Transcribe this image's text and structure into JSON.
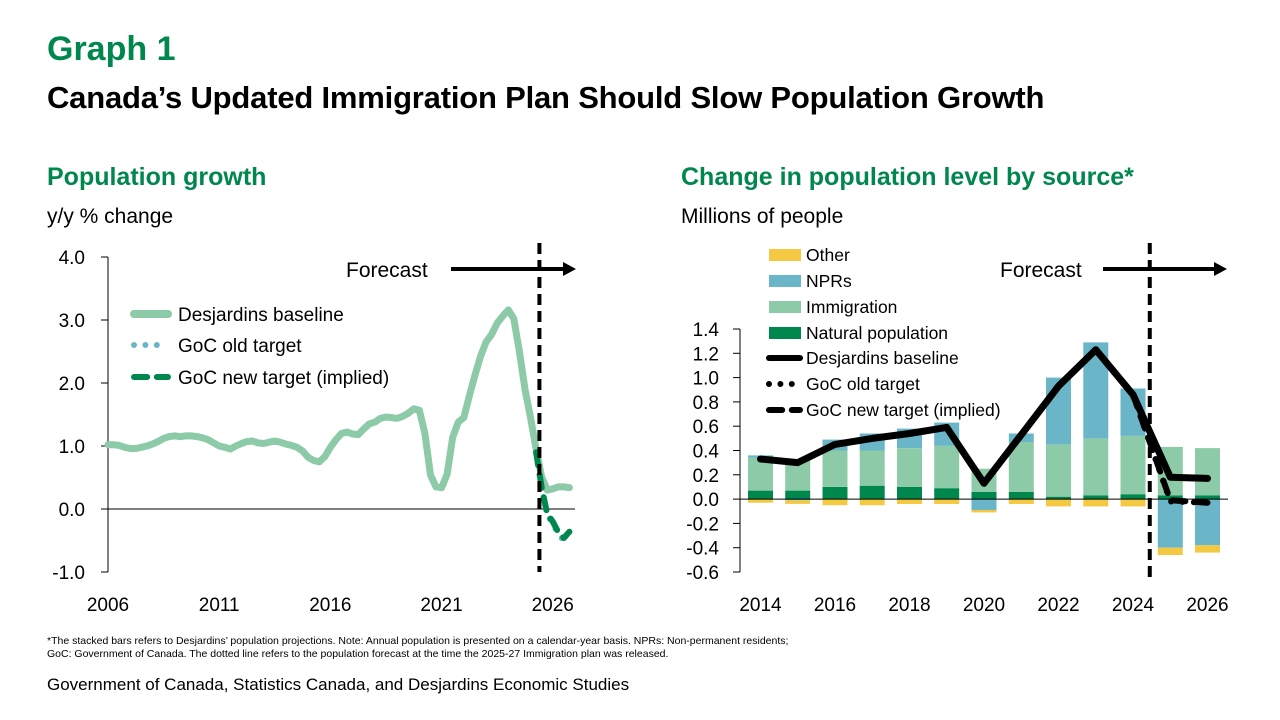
{
  "header": {
    "graph_label": "Graph 1",
    "title": "Canada’s Updated Immigration Plan Should Slow Population Growth"
  },
  "left_panel": {
    "title": "Population growth",
    "unit": "y/y % change"
  },
  "right_panel": {
    "title": "Change in population level by source*",
    "unit": "Millions of people"
  },
  "footnote": {
    "line1": "*The stacked bars refers to Desjardins’ population projections. Note: Annual population is presented on a calendar-year basis. NPRs: Non-permanent residents;",
    "line2": "GoC: Government of Canada. The dotted line refers to the population forecast at the time the 2025-27 Immigration plan was released."
  },
  "source": "Government of Canada, Statistics Canada, and Desjardins Economic Studies",
  "colors": {
    "brand_green": "#00874E",
    "light_green": "#8DCBA8",
    "teal": "#6AB5C7",
    "yellow": "#F5C842",
    "black": "#000000"
  },
  "chart_data": [
    {
      "type": "line",
      "title": "Population growth",
      "ylabel": "y/y % change",
      "xlabel": "",
      "ylim": [
        -1,
        4
      ],
      "xlim": [
        2006,
        2027
      ],
      "grid": false,
      "legend_position": "upper-left",
      "yticks": [
        {
          "value": 4,
          "label": "4.0"
        },
        {
          "value": 3,
          "label": "3.0"
        },
        {
          "value": 2,
          "label": "2.0"
        },
        {
          "value": 1,
          "label": "1.0"
        },
        {
          "value": 0,
          "label": "0.0"
        },
        {
          "value": -1,
          "label": "-1.0"
        }
      ],
      "xticks": [
        {
          "value": 2006,
          "label": "2006"
        },
        {
          "value": 2011,
          "label": "2011"
        },
        {
          "value": 2016,
          "label": "2016"
        },
        {
          "value": 2021,
          "label": "2021"
        },
        {
          "value": 2026,
          "label": "2026"
        }
      ],
      "forecast": {
        "label": "Forecast",
        "start": 2025.4
      },
      "series": [
        {
          "name": "Desjardins baseline",
          "style": "solid",
          "color": "#8DCBA8",
          "start": 2006.0,
          "step": 0.25,
          "values": [
            1.02,
            1.02,
            1.01,
            0.98,
            0.96,
            0.96,
            0.98,
            1.0,
            1.03,
            1.07,
            1.12,
            1.15,
            1.16,
            1.15,
            1.16,
            1.16,
            1.15,
            1.13,
            1.1,
            1.05,
            1.0,
            0.98,
            0.95,
            1.0,
            1.04,
            1.07,
            1.08,
            1.05,
            1.04,
            1.06,
            1.08,
            1.06,
            1.03,
            1.01,
            0.98,
            0.92,
            0.82,
            0.77,
            0.75,
            0.83,
            0.98,
            1.1,
            1.2,
            1.22,
            1.19,
            1.18,
            1.27,
            1.35,
            1.38,
            1.44,
            1.46,
            1.45,
            1.44,
            1.47,
            1.52,
            1.59,
            1.57,
            1.2,
            0.54,
            0.35,
            0.34,
            0.55,
            1.14,
            1.38,
            1.45,
            1.8,
            2.12,
            2.42,
            2.65,
            2.77,
            2.95,
            3.06,
            3.16,
            3.02,
            2.5,
            1.9,
            1.45,
            0.95,
            0.51,
            0.3,
            0.32,
            0.35,
            0.35,
            0.34
          ]
        },
        {
          "name": "GoC old target",
          "style": "dotted",
          "color": "#6AB5C7",
          "start": 2025.25,
          "step": 0.25,
          "values": [
            0.9,
            0.33,
            -0.1,
            -0.23,
            -0.4,
            -0.5,
            -0.42
          ]
        },
        {
          "name": "GoC new target (implied)",
          "style": "dashed",
          "color": "#00874E",
          "start": 2025.25,
          "step": 0.25,
          "values": [
            0.9,
            0.35,
            -0.08,
            -0.2,
            -0.37,
            -0.46,
            -0.36
          ]
        }
      ],
      "legend": [
        "Desjardins baseline",
        "GoC old target",
        "GoC new target (implied)"
      ]
    },
    {
      "type": "bar",
      "stacked": true,
      "title": "Change in population level by source*",
      "ylabel": "Millions of people",
      "xlabel": "",
      "ylim": [
        -0.6,
        1.4
      ],
      "xlim": [
        2013.45,
        2026.55
      ],
      "grid": false,
      "legend_position": "upper-left",
      "categories": [
        2014,
        2015,
        2016,
        2017,
        2018,
        2019,
        2020,
        2021,
        2022,
        2023,
        2024,
        2025,
        2026
      ],
      "yticks": [
        {
          "value": 1.4,
          "label": "1.4"
        },
        {
          "value": 1.2,
          "label": "1.2"
        },
        {
          "value": 1.0,
          "label": "1.0"
        },
        {
          "value": 0.8,
          "label": "0.8"
        },
        {
          "value": 0.6,
          "label": "0.6"
        },
        {
          "value": 0.4,
          "label": "0.4"
        },
        {
          "value": 0.2,
          "label": "0.2"
        },
        {
          "value": 0.0,
          "label": "0.0"
        },
        {
          "value": -0.2,
          "label": "-0.2"
        },
        {
          "value": -0.4,
          "label": "-0.4"
        },
        {
          "value": -0.6,
          "label": "-0.6"
        }
      ],
      "xticks": [
        {
          "value": 2014,
          "label": "2014"
        },
        {
          "value": 2016,
          "label": "2016"
        },
        {
          "value": 2018,
          "label": "2018"
        },
        {
          "value": 2020,
          "label": "2020"
        },
        {
          "value": 2022,
          "label": "2022"
        },
        {
          "value": 2024,
          "label": "2024"
        },
        {
          "value": 2026,
          "label": "2026"
        }
      ],
      "forecast": {
        "label": "Forecast",
        "start": 2024.45
      },
      "series": [
        {
          "name": "Natural population",
          "color": "#00874E",
          "values": [
            0.07,
            0.07,
            0.1,
            0.11,
            0.1,
            0.09,
            0.06,
            0.06,
            0.02,
            0.03,
            0.04,
            0.03,
            0.03
          ]
        },
        {
          "name": "Immigration",
          "color": "#8DCBA8",
          "values": [
            0.27,
            0.26,
            0.3,
            0.29,
            0.32,
            0.35,
            0.19,
            0.41,
            0.43,
            0.47,
            0.48,
            0.4,
            0.39
          ]
        },
        {
          "name": "NPRs",
          "color": "#6AB5C7",
          "values": [
            0.02,
            -0.01,
            0.09,
            0.14,
            0.16,
            0.19,
            -0.09,
            0.07,
            0.55,
            0.79,
            0.39,
            -0.4,
            -0.38
          ]
        },
        {
          "name": "Other",
          "color": "#F5C842",
          "values": [
            -0.03,
            -0.03,
            -0.05,
            -0.05,
            -0.04,
            -0.04,
            -0.02,
            -0.04,
            -0.06,
            -0.06,
            -0.06,
            -0.06,
            -0.06
          ]
        }
      ],
      "line_series": [
        {
          "name": "Desjardins baseline",
          "style": "solid",
          "color": "#000000",
          "x": [
            2014,
            2015,
            2016,
            2017,
            2018,
            2019,
            2020,
            2021,
            2022,
            2023,
            2024,
            2025,
            2026
          ],
          "values": [
            0.33,
            0.3,
            0.45,
            0.5,
            0.54,
            0.59,
            0.13,
            0.53,
            0.93,
            1.23,
            0.86,
            0.18,
            0.17
          ]
        },
        {
          "name": "GoC old target",
          "style": "dotted",
          "color": "#000000",
          "x": [
            2024,
            2025,
            2026
          ],
          "values": [
            0.86,
            -0.02,
            -0.03
          ]
        },
        {
          "name": "GoC new target (implied)",
          "style": "dashed",
          "color": "#000000",
          "x": [
            2024,
            2025,
            2026
          ],
          "values": [
            0.86,
            -0.01,
            -0.03
          ]
        }
      ],
      "legend": [
        "Other",
        "NPRs",
        "Immigration",
        "Natural population",
        "Desjardins baseline",
        "GoC old target",
        "GoC new target (implied)"
      ]
    }
  ]
}
